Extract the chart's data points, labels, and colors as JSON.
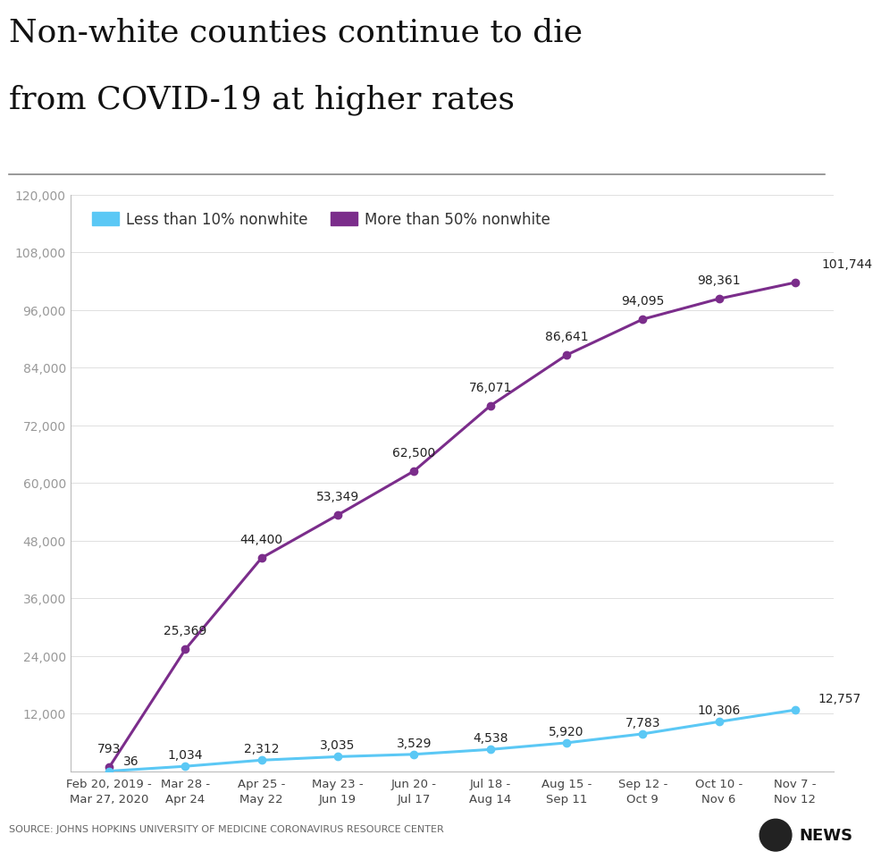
{
  "title_line1": "Non-white counties continue to die",
  "title_line2": "from COVID-19 at higher rates",
  "title_fontsize": 26,
  "source_text": "SOURCE: JOHNS HOPKINS UNIVERSITY OF MEDICINE CORONAVIRUS RESOURCE CENTER",
  "legend_label_blue": "Less than 10% nonwhite",
  "legend_label_purple": "More than 50% nonwhite",
  "x_labels": [
    "Feb 20, 2019 -\nMar 27, 2020",
    "Mar 28 -\nApr 24",
    "Apr 25 -\nMay 22",
    "May 23 -\nJun 19",
    "Jun 20 -\nJul 17",
    "Jul 18 -\nAug 14",
    "Aug 15 -\nSep 11",
    "Sep 12 -\nOct 9",
    "Oct 10 -\nNov 6",
    "Nov 7 -\nNov 12"
  ],
  "blue_values": [
    36,
    1034,
    2312,
    3035,
    3529,
    4538,
    5920,
    7783,
    10306,
    12757
  ],
  "purple_values": [
    793,
    25369,
    44400,
    53349,
    62500,
    76071,
    86641,
    94095,
    98361,
    101744
  ],
  "blue_labels": [
    "36",
    "1,034",
    "2,312",
    "3,035",
    "3,529",
    "4,538",
    "5,920",
    "7,783",
    "10,306",
    "12,757"
  ],
  "purple_labels": [
    "793",
    "25,369",
    "44,400",
    "53,349",
    "62,500",
    "76,071",
    "86,641",
    "94,095",
    "98,361",
    "101,744"
  ],
  "blue_color": "#5bc8f5",
  "purple_color": "#7b2d8b",
  "ylim_max": 120000,
  "ytick_step": 12000,
  "background_color": "#ffffff",
  "axis_color": "#bbbbbb",
  "tick_label_color": "#999999",
  "annotation_fontsize": 10,
  "xlabel_fontsize": 9.5,
  "legend_fontsize": 12,
  "source_fontsize": 8
}
